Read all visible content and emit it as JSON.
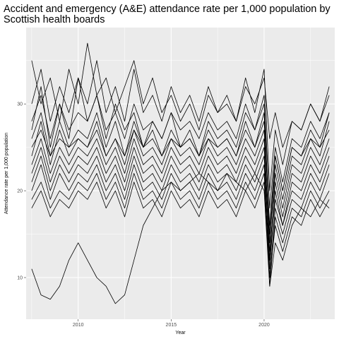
{
  "chart_data": {
    "type": "line",
    "title_line1": "Accident and emergency (A&E) attendance rate per 1,000 population by",
    "title_line2": "Scottish health boards",
    "xlabel": "Year",
    "ylabel": "Attendance rate per 1,000 population",
    "xlim": [
      2007.2,
      2023.8
    ],
    "ylim": [
      5.2,
      38.8
    ],
    "x_ticks": [
      2010,
      2015,
      2020
    ],
    "y_ticks": [
      10,
      20,
      30
    ],
    "grid": true,
    "legend": "none",
    "line_color": "#000000",
    "panel_color": "#ebebeb",
    "grid_color": "#ffffff",
    "series": [
      {
        "x": [
          2007.5,
          2008.0,
          2008.5,
          2009.0,
          2009.5,
          2010.0,
          2010.5,
          2011.0,
          2011.5,
          2012.0,
          2012.5,
          2013.0,
          2013.5,
          2014.0,
          2014.5,
          2015.0,
          2015.5,
          2016.0,
          2016.5,
          2017.0,
          2017.5,
          2018.0,
          2018.5,
          2019.0,
          2019.5,
          2020.0,
          2020.3,
          2020.6,
          2021.0,
          2021.5,
          2022.0,
          2022.5,
          2023.0,
          2023.5
        ],
        "values": [
          11,
          8,
          7.5,
          9,
          12,
          14,
          12,
          10,
          9,
          7,
          8,
          12,
          16,
          18,
          20,
          21,
          20,
          21,
          22,
          21,
          20,
          22,
          21,
          20,
          22,
          20,
          9,
          14,
          12,
          16,
          18,
          17,
          19,
          18
        ]
      },
      {
        "x": [
          2007.5,
          2008.0,
          2008.5,
          2009.0,
          2009.5,
          2010.0,
          2010.5,
          2011.0,
          2011.5,
          2012.0,
          2012.5,
          2013.0,
          2013.5,
          2014.0,
          2014.5,
          2015.0,
          2015.5,
          2016.0,
          2016.5,
          2017.0,
          2017.5,
          2018.0,
          2018.5,
          2019.0,
          2019.5,
          2020.0,
          2020.3,
          2020.6,
          2021.0,
          2021.5,
          2022.0,
          2022.5,
          2023.0,
          2023.5
        ],
        "values": [
          35,
          30,
          33,
          28,
          34,
          30,
          37,
          31,
          33,
          29,
          32,
          35,
          30,
          33,
          29,
          31,
          28,
          30,
          27,
          31,
          29,
          30,
          28,
          32,
          30,
          33,
          26,
          29,
          25,
          28,
          27,
          30,
          28,
          32
        ]
      },
      {
        "x": [
          2007.5,
          2008.0,
          2008.5,
          2009.0,
          2009.5,
          2010.0,
          2010.5,
          2011.0,
          2011.5,
          2012.0,
          2012.5,
          2013.0,
          2013.5,
          2014.0,
          2014.5,
          2015.0,
          2015.5,
          2016.0,
          2016.5,
          2017.0,
          2017.5,
          2018.0,
          2018.5,
          2019.0,
          2019.5,
          2020.0,
          2020.3,
          2020.6,
          2021.0,
          2021.5,
          2022.0,
          2022.5,
          2023.0,
          2023.5
        ],
        "values": [
          27,
          32,
          25,
          30,
          26,
          33,
          28,
          31,
          26,
          30,
          27,
          29,
          25,
          28,
          26,
          29,
          25,
          27,
          24,
          28,
          26,
          27,
          25,
          29,
          27,
          30,
          15,
          24,
          20,
          25,
          24,
          27,
          25,
          29
        ]
      },
      {
        "x": [
          2007.5,
          2008.0,
          2008.5,
          2009.0,
          2009.5,
          2010.0,
          2010.5,
          2011.0,
          2011.5,
          2012.0,
          2012.5,
          2013.0,
          2013.5,
          2014.0,
          2014.5,
          2015.0,
          2015.5,
          2016.0,
          2016.5,
          2017.0,
          2017.5,
          2018.0,
          2018.5,
          2019.0,
          2019.5,
          2020.0,
          2020.3,
          2020.6,
          2021.0,
          2021.5,
          2022.0,
          2022.5,
          2023.0,
          2023.5
        ],
        "values": [
          24,
          28,
          23,
          27,
          24,
          26,
          25,
          28,
          24,
          26,
          23,
          27,
          24,
          25,
          23,
          26,
          24,
          25,
          23,
          26,
          24,
          25,
          23,
          26,
          24,
          27,
          12,
          22,
          18,
          23,
          22,
          25,
          23,
          26
        ]
      },
      {
        "x": [
          2007.5,
          2008.0,
          2008.5,
          2009.0,
          2009.5,
          2010.0,
          2010.5,
          2011.0,
          2011.5,
          2012.0,
          2012.5,
          2013.0,
          2013.5,
          2014.0,
          2014.5,
          2015.0,
          2015.5,
          2016.0,
          2016.5,
          2017.0,
          2017.5,
          2018.0,
          2018.5,
          2019.0,
          2019.5,
          2020.0,
          2020.3,
          2020.6,
          2021.0,
          2021.5,
          2022.0,
          2022.5,
          2023.0,
          2023.5
        ],
        "values": [
          22,
          25,
          21,
          24,
          22,
          24,
          23,
          25,
          22,
          24,
          21,
          25,
          22,
          23,
          21,
          24,
          22,
          23,
          21,
          24,
          22,
          23,
          21,
          24,
          22,
          25,
          11,
          20,
          16,
          21,
          20,
          23,
          21,
          24
        ]
      },
      {
        "x": [
          2007.5,
          2008.0,
          2008.5,
          2009.0,
          2009.5,
          2010.0,
          2010.5,
          2011.0,
          2011.5,
          2012.0,
          2012.5,
          2013.0,
          2013.5,
          2014.0,
          2014.5,
          2015.0,
          2015.5,
          2016.0,
          2016.5,
          2017.0,
          2017.5,
          2018.0,
          2018.5,
          2019.0,
          2019.5,
          2020.0,
          2020.3,
          2020.6,
          2021.0,
          2021.5,
          2022.0,
          2022.5,
          2023.0,
          2023.5
        ],
        "values": [
          20,
          23,
          19,
          22,
          20,
          22,
          21,
          23,
          20,
          22,
          19,
          23,
          20,
          21,
          19,
          22,
          20,
          21,
          19,
          22,
          20,
          21,
          19,
          22,
          20,
          23,
          10,
          18,
          15,
          19,
          18,
          21,
          19,
          22
        ]
      },
      {
        "x": [
          2007.5,
          2008.0,
          2008.5,
          2009.0,
          2009.5,
          2010.0,
          2010.5,
          2011.0,
          2011.5,
          2012.0,
          2012.5,
          2013.0,
          2013.5,
          2014.0,
          2014.5,
          2015.0,
          2015.5,
          2016.0,
          2016.5,
          2017.0,
          2017.5,
          2018.0,
          2018.5,
          2019.0,
          2019.5,
          2020.0,
          2020.3,
          2020.6,
          2021.0,
          2021.5,
          2022.0,
          2022.5,
          2023.0,
          2023.5
        ],
        "values": [
          19,
          21,
          18,
          20,
          19,
          21,
          20,
          22,
          19,
          21,
          18,
          22,
          19,
          20,
          18,
          21,
          19,
          20,
          18,
          21,
          19,
          20,
          18,
          21,
          19,
          22,
          9,
          17,
          14,
          18,
          17,
          20,
          18,
          20
        ]
      },
      {
        "x": [
          2007.5,
          2008.0,
          2008.5,
          2009.0,
          2009.5,
          2010.0,
          2010.5,
          2011.0,
          2011.5,
          2012.0,
          2012.5,
          2013.0,
          2013.5,
          2014.0,
          2014.5,
          2015.0,
          2015.5,
          2016.0,
          2016.5,
          2017.0,
          2017.5,
          2018.0,
          2018.5,
          2019.0,
          2019.5,
          2020.0,
          2020.3,
          2020.6,
          2021.0,
          2021.5,
          2022.0,
          2022.5,
          2023.0,
          2023.5
        ],
        "values": [
          26,
          29,
          24,
          28,
          25,
          27,
          26,
          29,
          25,
          28,
          24,
          28,
          25,
          27,
          24,
          27,
          25,
          26,
          24,
          27,
          25,
          26,
          24,
          28,
          25,
          29,
          14,
          23,
          19,
          24,
          23,
          26,
          24,
          28
        ]
      },
      {
        "x": [
          2007.5,
          2008.0,
          2008.5,
          2009.0,
          2009.5,
          2010.0,
          2010.5,
          2011.0,
          2011.5,
          2012.0,
          2012.5,
          2013.0,
          2013.5,
          2014.0,
          2014.5,
          2015.0,
          2015.5,
          2016.0,
          2016.5,
          2017.0,
          2017.5,
          2018.0,
          2018.5,
          2019.0,
          2019.5,
          2020.0,
          2020.3,
          2020.6,
          2021.0,
          2021.5,
          2022.0,
          2022.5,
          2023.0,
          2023.5
        ],
        "values": [
          23,
          26,
          22,
          25,
          23,
          25,
          24,
          26,
          23,
          25,
          22,
          26,
          23,
          24,
          22,
          25,
          23,
          24,
          22,
          25,
          23,
          24,
          22,
          25,
          23,
          26,
          13,
          21,
          17,
          22,
          21,
          24,
          22,
          25
        ]
      },
      {
        "x": [
          2007.5,
          2008.0,
          2008.5,
          2009.0,
          2009.5,
          2010.0,
          2010.5,
          2011.0,
          2011.5,
          2012.0,
          2012.5,
          2013.0,
          2013.5,
          2014.0,
          2014.5,
          2015.0,
          2015.5,
          2016.0,
          2016.5,
          2017.0,
          2017.5,
          2018.0,
          2018.5,
          2019.0,
          2019.5,
          2020.0,
          2020.3,
          2020.6,
          2021.0,
          2021.5,
          2022.0,
          2022.5,
          2023.0,
          2023.5
        ],
        "values": [
          21,
          24,
          20,
          23,
          21,
          23,
          22,
          24,
          21,
          23,
          20,
          24,
          21,
          22,
          20,
          23,
          21,
          22,
          20,
          23,
          21,
          22,
          20,
          23,
          21,
          24,
          12,
          19,
          16,
          20,
          19,
          22,
          20,
          23
        ]
      },
      {
        "x": [
          2007.5,
          2008.0,
          2008.5,
          2009.0,
          2009.5,
          2010.0,
          2010.5,
          2011.0,
          2011.5,
          2012.0,
          2012.5,
          2013.0,
          2013.5,
          2014.0,
          2014.5,
          2015.0,
          2015.5,
          2016.0,
          2016.5,
          2017.0,
          2017.5,
          2018.0,
          2018.5,
          2019.0,
          2019.5,
          2020.0,
          2020.3,
          2020.6,
          2021.0,
          2021.5,
          2022.0,
          2022.5,
          2023.0,
          2023.5
        ],
        "values": [
          30,
          34,
          28,
          32,
          29,
          33,
          30,
          35,
          29,
          32,
          28,
          34,
          29,
          31,
          28,
          32,
          29,
          31,
          28,
          32,
          29,
          31,
          28,
          33,
          29,
          34,
          20,
          27,
          23,
          28,
          27,
          30,
          28,
          31
        ]
      },
      {
        "x": [
          2007.5,
          2008.0,
          2008.5,
          2009.0,
          2009.5,
          2010.0,
          2010.5,
          2011.0,
          2011.5,
          2012.0,
          2012.5,
          2013.0,
          2013.5,
          2014.0,
          2014.5,
          2015.0,
          2015.5,
          2016.0,
          2016.5,
          2017.0,
          2017.5,
          2018.0,
          2018.5,
          2019.0,
          2019.5,
          2020.0,
          2020.3,
          2020.6,
          2021.0,
          2021.5,
          2022.0,
          2022.5,
          2023.0,
          2023.5
        ],
        "values": [
          18,
          20,
          17,
          19,
          18,
          20,
          19,
          21,
          18,
          20,
          17,
          21,
          18,
          19,
          17,
          20,
          18,
          19,
          17,
          20,
          18,
          19,
          17,
          20,
          18,
          21,
          10,
          16,
          13,
          17,
          16,
          19,
          17,
          19
        ]
      },
      {
        "x": [
          2007.5,
          2008.0,
          2008.5,
          2009.0,
          2009.5,
          2010.0,
          2010.5,
          2011.0,
          2011.5,
          2012.0,
          2012.5,
          2013.0,
          2013.5,
          2014.0,
          2014.5,
          2015.0,
          2015.5,
          2016.0,
          2016.5,
          2017.0,
          2017.5,
          2018.0,
          2018.5,
          2019.0,
          2019.5,
          2020.0,
          2020.3,
          2020.6,
          2021.0,
          2021.5,
          2022.0,
          2022.5,
          2023.0,
          2023.5
        ],
        "values": [
          25,
          27,
          24,
          26,
          25,
          26,
          25,
          27,
          24,
          26,
          24,
          27,
          25,
          26,
          24,
          26,
          25,
          26,
          24,
          26,
          25,
          26,
          24,
          27,
          25,
          28,
          16,
          24,
          20,
          25,
          24,
          26,
          25,
          27
        ]
      },
      {
        "x": [
          2007.5,
          2008.0,
          2008.5,
          2009.0,
          2009.5,
          2010.0,
          2010.5,
          2011.0,
          2011.5,
          2012.0,
          2012.5,
          2013.0,
          2013.5,
          2014.0,
          2014.5,
          2015.0,
          2015.5,
          2016.0,
          2016.5,
          2017.0,
          2017.5,
          2018.0,
          2018.5,
          2019.0,
          2019.5,
          2020.0,
          2020.3,
          2020.6,
          2021.0,
          2021.5,
          2022.0,
          2022.5,
          2023.0,
          2023.5
        ],
        "values": [
          28,
          31,
          26,
          30,
          27,
          29,
          28,
          31,
          27,
          29,
          26,
          30,
          27,
          28,
          26,
          29,
          27,
          28,
          26,
          29,
          27,
          28,
          26,
          30,
          27,
          31,
          18,
          25,
          21,
          26,
          25,
          28,
          26,
          29
        ]
      }
    ]
  }
}
